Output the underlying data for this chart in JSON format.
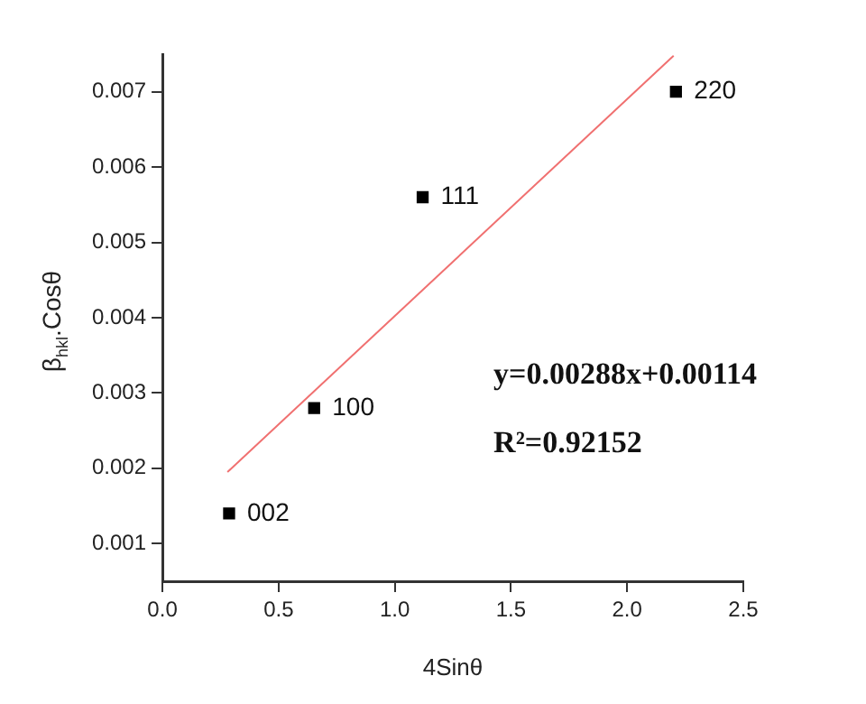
{
  "chart_data": {
    "type": "scatter",
    "xlabel": "4Sinθ",
    "ylabel": "β$_{hkl}$.Cosθ",
    "xlim": [
      0,
      2.5
    ],
    "ylim": [
      0.0005,
      0.0075
    ],
    "xticks": [
      {
        "value": 0,
        "label": "0.0"
      },
      0.5,
      {
        "value": 1,
        "label": "1.0"
      },
      1.5,
      {
        "value": 2,
        "label": "2.0"
      },
      2.5
    ],
    "yticks": [
      0.001,
      0.002,
      0.003,
      0.004,
      0.005,
      0.006,
      0.007
    ],
    "series": [
      {
        "color": "#000000",
        "x": [
          0.287,
          0.653,
          1.12,
          2.21
        ],
        "values": [
          0.0014,
          0.0028,
          0.0056,
          0.007
        ],
        "marker": "square"
      },
      {
        "type": "line",
        "color": "#f07070",
        "x": [
          0.28,
          2.2
        ],
        "values": [
          0.00195,
          0.00748
        ],
        "marker": "none",
        "line_style": "solid"
      }
    ],
    "annotations": [
      {
        "text": "002",
        "x": 0.287,
        "y": 0.0014
      },
      {
        "text": "100",
        "x": 0.653,
        "y": 0.0028
      },
      {
        "text": "111",
        "x": 1.12,
        "y": 0.0056
      },
      {
        "text": "220",
        "x": 2.21,
        "y": 0.007
      },
      "y=0.00288x+0.00114",
      "R²=0.92152"
    ],
    "grid": false,
    "legend": false
  }
}
